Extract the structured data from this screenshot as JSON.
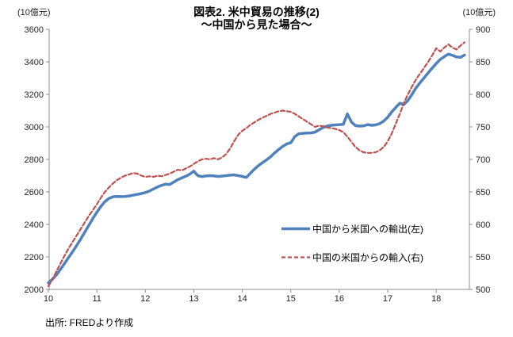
{
  "title": {
    "line1": "図表2. 米中貿易の推移(2)",
    "line2": "～中国から見た場合～"
  },
  "source": "出所: FREDより作成",
  "legend": {
    "position": "inside-middle-right",
    "items": [
      {
        "label": "中国から米国への輸出(左)",
        "swatch": "solid-blue-line"
      },
      {
        "label": "中国の米国からの輸入(右)",
        "swatch": "dashed-red-line"
      }
    ]
  },
  "chart_data": {
    "type": "line",
    "title": "図表2. 米中貿易の推移(2) ～中国から見た場合～",
    "grid": false,
    "x": {
      "frequency": "monthly",
      "start": "2010-01",
      "end": "2018-08",
      "tick_labels": [
        "10",
        "11",
        "12",
        "13",
        "14",
        "15",
        "16",
        "17",
        "18"
      ]
    },
    "left_axis": {
      "unit": "(10億元)",
      "min": 2000,
      "max": 3600,
      "step": 200,
      "tick_labels": [
        "3600",
        "3400",
        "3200",
        "3000",
        "2800",
        "2600",
        "2400",
        "2200",
        "2000"
      ]
    },
    "right_axis": {
      "unit": "(10億元)",
      "min": 500,
      "max": 900,
      "step": 50,
      "tick_labels": [
        "900",
        "850",
        "800",
        "750",
        "700",
        "650",
        "600",
        "550",
        "500"
      ]
    },
    "series": [
      {
        "name": "中国から米国への輸出(左)",
        "axis": "left",
        "color": "#4F81BD",
        "line_style": "solid",
        "values": [
          2040,
          2063,
          2090,
          2124,
          2160,
          2196,
          2232,
          2270,
          2310,
          2352,
          2394,
          2436,
          2475,
          2510,
          2540,
          2560,
          2570,
          2572,
          2571,
          2572,
          2575,
          2580,
          2585,
          2590,
          2596,
          2605,
          2618,
          2630,
          2640,
          2648,
          2645,
          2660,
          2675,
          2686,
          2696,
          2710,
          2728,
          2700,
          2694,
          2698,
          2700,
          2698,
          2695,
          2697,
          2700,
          2703,
          2705,
          2700,
          2695,
          2689,
          2715,
          2740,
          2762,
          2780,
          2797,
          2816,
          2840,
          2861,
          2880,
          2895,
          2903,
          2940,
          2958,
          2960,
          2962,
          2963,
          2968,
          2982,
          2996,
          3005,
          3010,
          3012,
          3013,
          3016,
          3080,
          3030,
          3008,
          3005,
          3006,
          3014,
          3010,
          3012,
          3020,
          3036,
          3060,
          3092,
          3120,
          3146,
          3138,
          3162,
          3200,
          3240,
          3272,
          3302,
          3332,
          3362,
          3390,
          3415,
          3432,
          3448,
          3440,
          3430,
          3428,
          3442
        ]
      },
      {
        "name": "中国の米国からの輸入(右)",
        "axis": "right",
        "color": "#C0504D",
        "line_style": "dashed",
        "values": [
          505,
          515,
          528,
          540,
          552,
          563,
          573,
          583,
          593,
          603,
          613,
          622,
          631,
          641,
          650,
          657,
          663,
          668,
          672,
          675,
          677,
          679,
          678,
          675,
          673,
          674,
          673,
          675,
          674,
          676,
          678,
          681,
          684,
          683,
          686,
          689,
          693,
          697,
          700,
          701,
          700,
          702,
          700,
          703,
          708,
          717,
          728,
          738,
          744,
          748,
          753,
          757,
          761,
          764,
          767,
          770,
          772,
          774,
          775,
          774,
          773,
          770,
          766,
          762,
          758,
          754,
          750,
          752,
          751,
          749,
          748,
          747,
          745,
          742,
          735,
          727,
          719,
          714,
          711,
          710,
          710,
          711,
          714,
          719,
          728,
          740,
          755,
          770,
          787,
          800,
          812,
          823,
          832,
          841,
          850,
          860,
          871,
          866,
          872,
          877,
          872,
          869,
          875,
          880
        ]
      }
    ]
  }
}
